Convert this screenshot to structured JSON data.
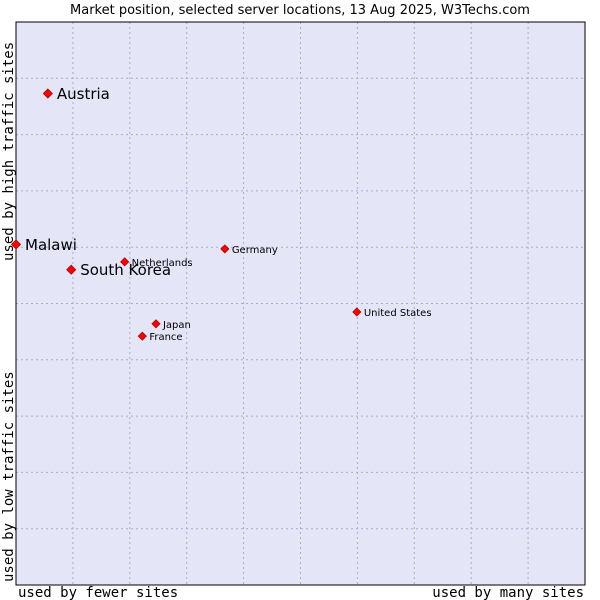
{
  "chart_data": {
    "type": "scatter",
    "title": "Market position, selected server locations, 13 Aug 2025, W3Techs.com",
    "xlabel_left": "used by fewer sites",
    "xlabel_right": "used by many sites",
    "ylabel_bottom": "used by low traffic sites",
    "ylabel_top": "used by high traffic sites",
    "xlim": [
      0,
      10
    ],
    "ylim": [
      0,
      10
    ],
    "grid": true,
    "colors": {
      "plot_bg": "#e4e6f8",
      "grid": "#aaaacc",
      "border": "#000000",
      "marker": "#ff0000",
      "marker_edge": "#b00000"
    },
    "points": [
      {
        "label": "Austria",
        "x": 0.56,
        "y": 8.73,
        "size": "large"
      },
      {
        "label": "Malawi",
        "x": 0.0,
        "y": 6.05,
        "size": "large"
      },
      {
        "label": "South Korea",
        "x": 0.97,
        "y": 5.6,
        "size": "large"
      },
      {
        "label": "Netherlands",
        "x": 1.91,
        "y": 5.74,
        "size": "small"
      },
      {
        "label": "Germany",
        "x": 3.67,
        "y": 5.97,
        "size": "small"
      },
      {
        "label": "United States",
        "x": 5.99,
        "y": 4.85,
        "size": "small"
      },
      {
        "label": "Japan",
        "x": 2.46,
        "y": 4.64,
        "size": "small"
      },
      {
        "label": "France",
        "x": 2.22,
        "y": 4.42,
        "size": "small"
      }
    ]
  }
}
